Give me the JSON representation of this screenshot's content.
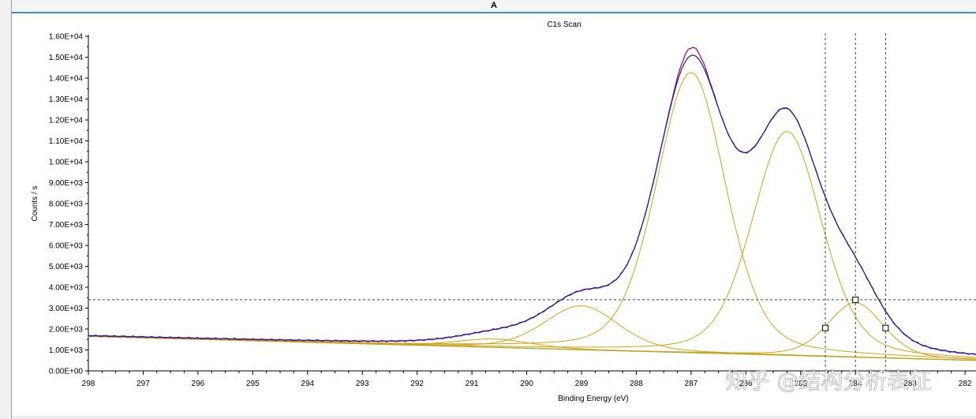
{
  "header": {
    "title": "A"
  },
  "chart_data": {
    "type": "line",
    "title": "C1s Scan",
    "xlabel": "Binding Energy (eV)",
    "ylabel": "Counts / s",
    "xlim": [
      298,
      281.8
    ],
    "x_reversed": true,
    "ylim": [
      0,
      16000
    ],
    "x_ticks": [
      "298",
      "297",
      "296",
      "295",
      "294",
      "293",
      "292",
      "291",
      "290",
      "289",
      "288",
      "287",
      "286",
      "285",
      "284",
      "283",
      "282"
    ],
    "y_ticks": [
      "0.00E+00",
      "1.00E+03",
      "2.00E+03",
      "3.00E+03",
      "4.00E+03",
      "5.00E+03",
      "6.00E+03",
      "7.00E+03",
      "8.00E+03",
      "9.00E+03",
      "1.00E+04",
      "1.10E+04",
      "1.20E+04",
      "1.30E+04",
      "1.40E+04",
      "1.50E+04",
      "1.60E+04"
    ],
    "grid": false,
    "colors": {
      "raw": "#a0005a",
      "envelope": "#1a1aa8",
      "component": "#d4a017",
      "background": "#22cc22",
      "marker": "#555555"
    },
    "background_line": {
      "x": [
        298,
        281.8
      ],
      "y": [
        1650,
        500
      ]
    },
    "components": [
      {
        "center": 290.6,
        "height": 400,
        "fwhm": 1.6
      },
      {
        "center": 289.0,
        "height": 2100,
        "fwhm": 1.6
      },
      {
        "center": 287.0,
        "height": 13400,
        "fwhm": 1.5
      },
      {
        "center": 285.25,
        "height": 10700,
        "fwhm": 1.5
      },
      {
        "center": 284.0,
        "height": 2600,
        "fwhm": 1.2
      }
    ],
    "cursor_lines": {
      "vertical_x": [
        284.55,
        284.0,
        283.45
      ],
      "horizontal_y": 3400
    },
    "markers": [
      {
        "x": 284.55,
        "y": 2050
      },
      {
        "x": 284.0,
        "y": 3400
      },
      {
        "x": 283.45,
        "y": 2050
      }
    ]
  },
  "watermark": "知乎 @结构分析表征"
}
